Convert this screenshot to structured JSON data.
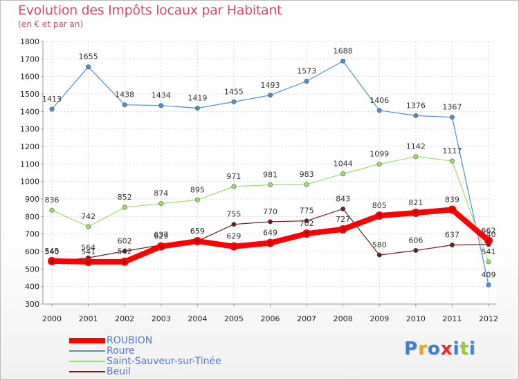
{
  "header": {
    "title": "Evolution des Impôts locaux par Habitant",
    "subtitle": "(en € et par an)"
  },
  "chart_data": {
    "type": "line",
    "title": "Evolution des Impôts locaux par Habitant",
    "subtitle": "(en € et par an)",
    "xlabel": "",
    "ylabel": "",
    "ylim": [
      300,
      1800
    ],
    "yticks": [
      300,
      400,
      500,
      600,
      700,
      800,
      900,
      1000,
      1100,
      1200,
      1300,
      1400,
      1500,
      1600,
      1700,
      1800
    ],
    "grid": true,
    "legend_position": "bottom-left",
    "categories": [
      "2000",
      "2001",
      "2002",
      "2003",
      "2004",
      "2005",
      "2006",
      "2007",
      "2008",
      "2009",
      "2010",
      "2011",
      "2012"
    ],
    "series": [
      {
        "name": "Roure",
        "color": "#4a90d0",
        "values": [
          1413,
          1655,
          1438,
          1434,
          1419,
          1455,
          1493,
          1573,
          1688,
          1406,
          1376,
          1367,
          409
        ]
      },
      {
        "name": "Saint-Sauveur-sur-Tinée",
        "color": "#99e06a",
        "values": [
          836,
          742,
          852,
          874,
          895,
          971,
          981,
          983,
          1044,
          1099,
          1142,
          1117,
          541
        ]
      },
      {
        "name": "Beuil",
        "color": "#6b1e1e",
        "values": [
          540,
          564,
          602,
          637,
          659,
          755,
          770,
          775,
          843,
          580,
          606,
          637,
          640
        ]
      },
      {
        "name": "ROUBION",
        "color": "#ff0000",
        "values": [
          545,
          541,
          542,
          629,
          659,
          629,
          649,
          702,
          727,
          805,
          821,
          839,
          662
        ]
      }
    ]
  },
  "legend": [
    {
      "label": "ROUBION",
      "color": "#ff0000",
      "thick": true
    },
    {
      "label": "Roure",
      "color": "#4a90d0",
      "thick": false
    },
    {
      "label": "Saint-Sauveur-sur-Tinée",
      "color": "#99e06a",
      "thick": false
    },
    {
      "label": "Beuil",
      "color": "#6b1e1e",
      "thick": false
    }
  ],
  "logo": {
    "text": "Proxiti",
    "letters": [
      "P",
      "r",
      "o",
      "x",
      "i",
      "t",
      "i"
    ],
    "colors": [
      "#3a7fd0",
      "#f0a020",
      "#3a7fd0",
      "#e03030",
      "#3a7fd0",
      "#99cc33",
      "#3a7fd0"
    ]
  }
}
